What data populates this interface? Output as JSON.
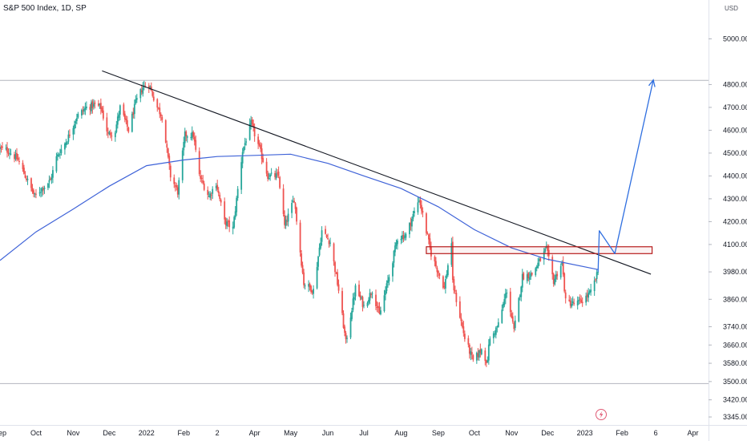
{
  "header": {
    "title": "S&P 500 Index, 1D, SP"
  },
  "currency": "USD",
  "colors": {
    "up": "#26a69a",
    "down": "#ef5350",
    "moving_average": "#3f63d8",
    "trendline": "#131722",
    "zone": "#b71c1c",
    "projection": "#2f6fe0"
  },
  "chart_data": {
    "type": "candlestick",
    "title": "S&P 500 Index, 1D, SP",
    "ylabel": "USD",
    "ylim": [
      3310,
      5170
    ],
    "x_range": [
      "2021-09-01",
      "2023-04-14"
    ],
    "y_ticks": [
      3345,
      3420,
      3500,
      3580,
      3660,
      3740,
      3860,
      3980,
      4100,
      4200,
      4300,
      4400,
      4500,
      4600,
      4700,
      4800,
      5000
    ],
    "x_ticks": [
      {
        "label": "Sep",
        "date": "2021-09-01"
      },
      {
        "label": "Oct",
        "date": "2021-10-01"
      },
      {
        "label": "Nov",
        "date": "2021-11-01"
      },
      {
        "label": "Dec",
        "date": "2021-12-01"
      },
      {
        "label": "2022",
        "date": "2022-01-01"
      },
      {
        "label": "Feb",
        "date": "2022-02-01"
      },
      {
        "label": "2",
        "date": "2022-03-01"
      },
      {
        "label": "Apr",
        "date": "2022-04-01"
      },
      {
        "label": "May",
        "date": "2022-05-01"
      },
      {
        "label": "Jun",
        "date": "2022-06-01"
      },
      {
        "label": "Jul",
        "date": "2022-07-01"
      },
      {
        "label": "Aug",
        "date": "2022-08-01"
      },
      {
        "label": "Sep",
        "date": "2022-09-01"
      },
      {
        "label": "Oct",
        "date": "2022-10-01"
      },
      {
        "label": "Nov",
        "date": "2022-11-01"
      },
      {
        "label": "Dec",
        "date": "2022-12-01"
      },
      {
        "label": "2023",
        "date": "2023-01-01"
      },
      {
        "label": "Feb",
        "date": "2023-02-01"
      },
      {
        "label": "6",
        "date": "2023-03-01"
      },
      {
        "label": "Apr",
        "date": "2023-04-01"
      }
    ],
    "reference_lines": [
      4818,
      3491
    ],
    "close_path": [
      [
        "2021-09-01",
        4520
      ],
      [
        "2021-09-08",
        4510
      ],
      [
        "2021-09-16",
        4470
      ],
      [
        "2021-09-22",
        4400
      ],
      [
        "2021-09-30",
        4310
      ],
      [
        "2021-10-05",
        4340
      ],
      [
        "2021-10-13",
        4380
      ],
      [
        "2021-10-18",
        4480
      ],
      [
        "2021-10-27",
        4560
      ],
      [
        "2021-11-04",
        4660
      ],
      [
        "2021-11-12",
        4700
      ],
      [
        "2021-11-19",
        4710
      ],
      [
        "2021-11-24",
        4700
      ],
      [
        "2021-11-30",
        4580
      ],
      [
        "2021-12-06",
        4600
      ],
      [
        "2021-12-10",
        4700
      ],
      [
        "2021-12-17",
        4600
      ],
      [
        "2021-12-23",
        4720
      ],
      [
        "2021-12-29",
        4790
      ],
      [
        "2022-01-03",
        4800
      ],
      [
        "2022-01-10",
        4700
      ],
      [
        "2022-01-14",
        4660
      ],
      [
        "2022-01-21",
        4400
      ],
      [
        "2022-01-27",
        4330
      ],
      [
        "2022-02-02",
        4580
      ],
      [
        "2022-02-09",
        4580
      ],
      [
        "2022-02-14",
        4400
      ],
      [
        "2022-02-22",
        4310
      ],
      [
        "2022-02-28",
        4370
      ],
      [
        "2022-03-07",
        4200
      ],
      [
        "2022-03-14",
        4170
      ],
      [
        "2022-03-22",
        4510
      ],
      [
        "2022-03-29",
        4630
      ],
      [
        "2022-04-05",
        4520
      ],
      [
        "2022-04-12",
        4400
      ],
      [
        "2022-04-21",
        4400
      ],
      [
        "2022-04-26",
        4180
      ],
      [
        "2022-05-04",
        4300
      ],
      [
        "2022-05-12",
        3930
      ],
      [
        "2022-05-20",
        3900
      ],
      [
        "2022-05-27",
        4160
      ],
      [
        "2022-06-03",
        4110
      ],
      [
        "2022-06-10",
        3900
      ],
      [
        "2022-06-16",
        3670
      ],
      [
        "2022-06-24",
        3910
      ],
      [
        "2022-07-01",
        3830
      ],
      [
        "2022-07-08",
        3900
      ],
      [
        "2022-07-14",
        3790
      ],
      [
        "2022-07-22",
        3960
      ],
      [
        "2022-07-29",
        4130
      ],
      [
        "2022-08-05",
        4140
      ],
      [
        "2022-08-16",
        4300
      ],
      [
        "2022-08-19",
        4230
      ],
      [
        "2022-08-26",
        4060
      ],
      [
        "2022-09-06",
        3910
      ],
      [
        "2022-09-12",
        4110
      ],
      [
        "2022-09-13",
        3930
      ],
      [
        "2022-09-23",
        3690
      ],
      [
        "2022-09-30",
        3590
      ],
      [
        "2022-10-07",
        3640
      ],
      [
        "2022-10-12",
        3580
      ],
      [
        "2022-10-13",
        3670
      ],
      [
        "2022-10-21",
        3750
      ],
      [
        "2022-10-28",
        3900
      ],
      [
        "2022-11-03",
        3720
      ],
      [
        "2022-11-10",
        3960
      ],
      [
        "2022-11-18",
        3970
      ],
      [
        "2022-11-30",
        4080
      ],
      [
        "2022-12-06",
        3940
      ],
      [
        "2022-12-13",
        4020
      ],
      [
        "2022-12-16",
        3850
      ],
      [
        "2022-12-23",
        3840
      ],
      [
        "2022-12-29",
        3850
      ],
      [
        "2023-01-06",
        3890
      ],
      [
        "2023-01-12",
        3980
      ]
    ],
    "series": [
      {
        "type": "line",
        "points": [
          [
            "2021-09-01",
            4030
          ],
          [
            "2021-10-01",
            4155
          ],
          [
            "2021-11-01",
            4255
          ],
          [
            "2021-12-01",
            4355
          ],
          [
            "2022-01-01",
            4445
          ],
          [
            "2022-02-01",
            4470
          ],
          [
            "2022-03-01",
            4485
          ],
          [
            "2022-04-01",
            4490
          ],
          [
            "2022-05-01",
            4495
          ],
          [
            "2022-06-01",
            4455
          ],
          [
            "2022-07-01",
            4400
          ],
          [
            "2022-08-01",
            4345
          ],
          [
            "2022-09-01",
            4265
          ],
          [
            "2022-10-01",
            4165
          ],
          [
            "2022-11-01",
            4085
          ],
          [
            "2022-12-01",
            4035
          ],
          [
            "2023-01-12",
            3990
          ]
        ]
      }
    ],
    "annotations": [
      {
        "type": "trendline",
        "from": [
          "2021-11-25",
          4860
        ],
        "to": [
          "2023-02-25",
          3970
        ]
      },
      {
        "type": "zone",
        "from": [
          "2022-08-22",
          4090
        ],
        "to": [
          "2023-02-26",
          4060
        ]
      },
      {
        "type": "projection",
        "points": [
          [
            "2023-01-12",
            3980
          ],
          [
            "2023-01-13",
            4160
          ],
          [
            "2023-01-26",
            4060
          ],
          [
            "2023-02-27",
            4820
          ]
        ]
      }
    ]
  }
}
